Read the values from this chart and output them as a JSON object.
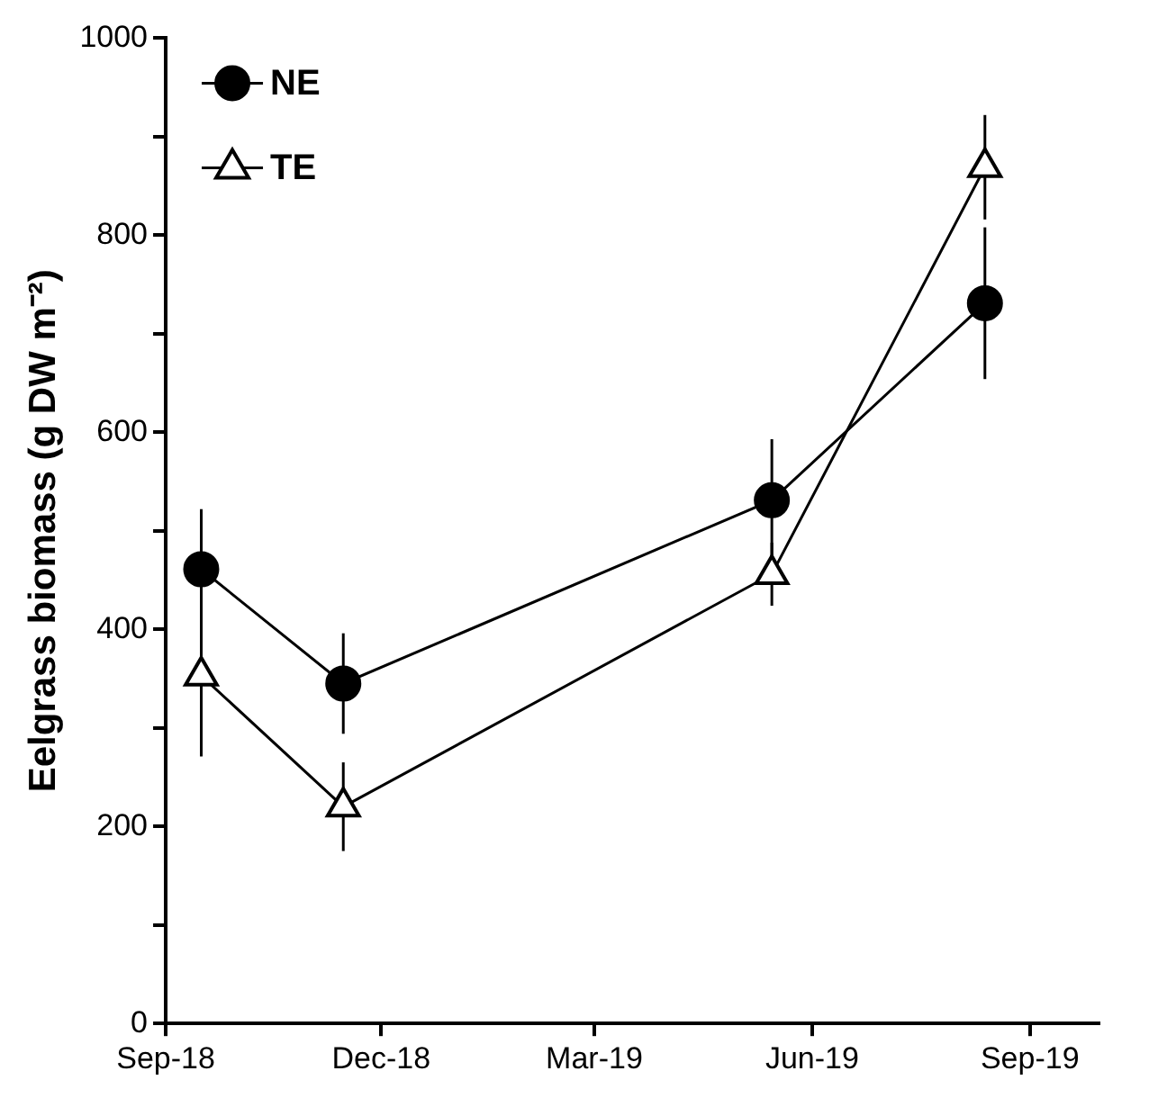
{
  "chart_data": {
    "type": "line",
    "ylabel": "Eelgrass biomass (g DW m⁻²)",
    "xlim": [
      "2018-09-01",
      "2019-09-30"
    ],
    "xticks": [
      {
        "value": "2018-09-01",
        "label": "Sep-18"
      },
      {
        "value": "2018-12-01",
        "label": "Dec-18"
      },
      {
        "value": "2019-03-01",
        "label": "Mar-19"
      },
      {
        "value": "2019-06-01",
        "label": "Jun-19"
      },
      {
        "value": "2019-09-01",
        "label": "Sep-19"
      }
    ],
    "ylim": [
      0,
      1000
    ],
    "yticks": [
      0,
      {
        "value": 100,
        "label": null
      },
      200,
      {
        "value": 300,
        "label": null
      },
      400,
      {
        "value": 500,
        "label": null
      },
      600,
      {
        "value": 700,
        "label": null
      },
      800,
      {
        "value": 900,
        "label": null
      },
      1000
    ],
    "grid": false,
    "legend": "top left",
    "line_style": "solid",
    "series": [
      {
        "name": "NE",
        "color": "#000000",
        "marker": "circle",
        "x": [
          "2018-09-16",
          "2018-11-15",
          "2019-05-15",
          "2019-08-13"
        ],
        "values": [
          461,
          345,
          531,
          731
        ],
        "errors": [
          61,
          51,
          62,
          77
        ]
      },
      {
        "name": "TE",
        "color": "#000000",
        "marker": "triangle",
        "x": [
          "2018-09-16",
          "2018-11-15",
          "2019-05-15",
          "2019-08-13"
        ],
        "values": [
          353,
          220,
          456,
          869
        ],
        "errors": [
          82,
          45,
          32,
          53
        ]
      }
    ]
  }
}
